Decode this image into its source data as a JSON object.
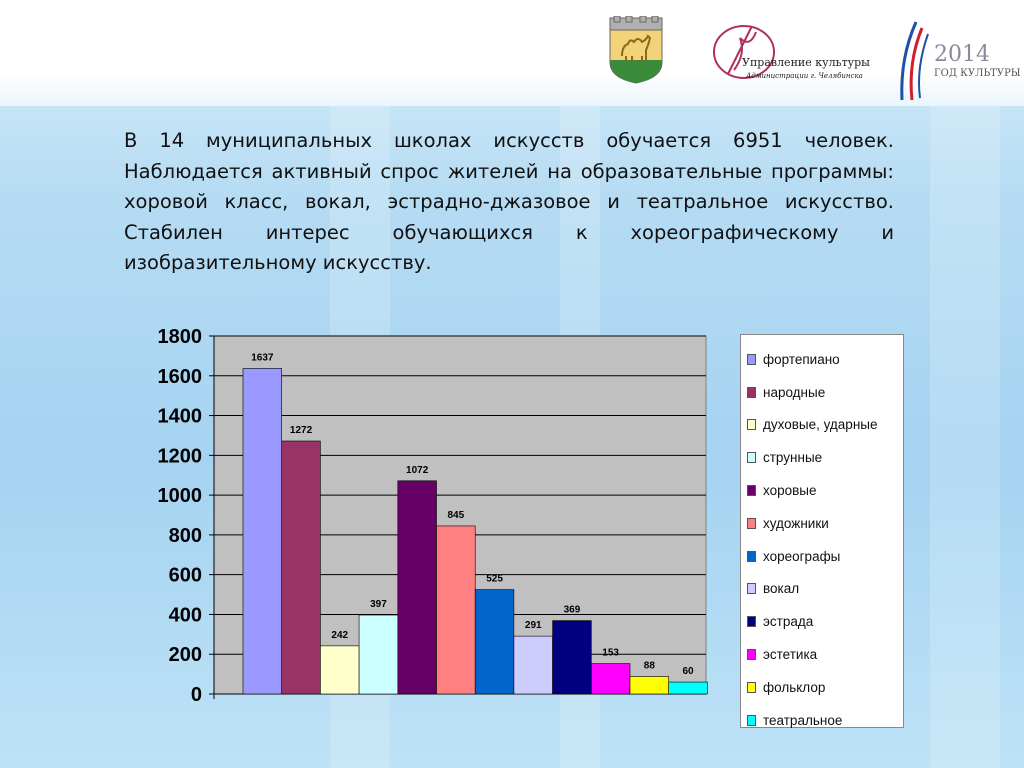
{
  "header": {
    "culture_logo": {
      "line1": "Управление культуры",
      "line2": "Администрации г. Челябинска"
    },
    "year_logo": {
      "year": "2014",
      "caption": "ГОД КУЛЬТУРЫ"
    }
  },
  "paragraph": "В 14 муниципальных школах искусств обучается 6951 человек. Наблюдается активный спрос жителей на образовательные программы: хоровой класс, вокал, эстрадно-джазовое и театральное искусство. Стабилен интерес обучающихся к хореографическому и изобразительному искусству.",
  "chart_data": {
    "type": "bar",
    "ylim": [
      0,
      1800
    ],
    "yticks": [
      0,
      200,
      400,
      600,
      800,
      1000,
      1200,
      1400,
      1600,
      1800
    ],
    "grid": true,
    "plot_background": "#c0c0c0",
    "legend_position": "right",
    "series": [
      {
        "name": "фортепиано",
        "value": 1637,
        "color": "#9999ff"
      },
      {
        "name": "народные",
        "value": 1272,
        "color": "#993366"
      },
      {
        "name": "духовые, ударные",
        "value": 242,
        "color": "#ffffcc"
      },
      {
        "name": "струнные",
        "value": 397,
        "color": "#ccffff"
      },
      {
        "name": "хоровые",
        "value": 1072,
        "color": "#660066"
      },
      {
        "name": "художники",
        "value": 845,
        "color": "#ff8080"
      },
      {
        "name": "хореографы",
        "value": 525,
        "color": "#0066cc"
      },
      {
        "name": "вокал",
        "value": 291,
        "color": "#ccccff"
      },
      {
        "name": "эстрада",
        "value": 369,
        "color": "#000080"
      },
      {
        "name": "эстетика",
        "value": 153,
        "color": "#ff00ff"
      },
      {
        "name": "фольклор",
        "value": 88,
        "color": "#ffff00"
      },
      {
        "name": "театральное",
        "value": 60,
        "color": "#00ffff"
      }
    ]
  }
}
